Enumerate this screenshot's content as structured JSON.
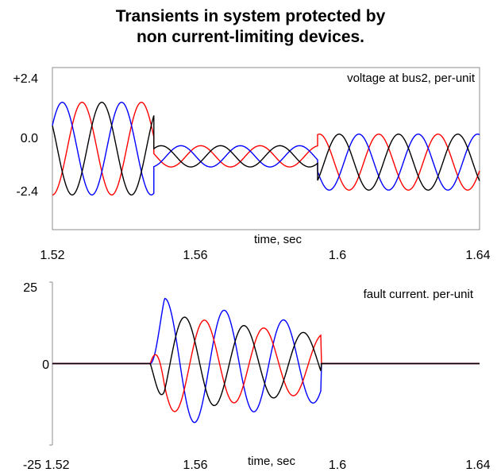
{
  "title": {
    "line1": "Transients in system protected by",
    "line2": "non current-limiting devices."
  },
  "colors": {
    "phase_a": "#ff0000",
    "phase_b": "#0000ff",
    "phase_c": "#000000"
  },
  "chart_data": [
    {
      "type": "line",
      "annotation": "voltage at bus2, per-unit",
      "xlabel": "time, sec",
      "ylabel": "",
      "xlim": [
        1.52,
        1.64
      ],
      "ylim": [
        -4.2,
        4.2
      ],
      "x_ticks": [
        "1.52",
        "1.56",
        "1.6",
        "1.64"
      ],
      "y_ticks": [
        "+2.4",
        "0.0",
        "-2.4"
      ],
      "grid": false,
      "series": [
        {
          "color": "#ff0000",
          "segments": [
            {
              "x_start": 1.52,
              "x_end": 1.5485,
              "amplitude": 2.4,
              "frequency_hz": 60,
              "phase_deg": -90
            },
            {
              "x_start": 1.5485,
              "x_end": 1.5945,
              "amplitude": 0.55,
              "frequency_hz": 60,
              "phase_deg": -90,
              "offset": -0.4
            },
            {
              "x_start": 1.5945,
              "x_end": 1.64,
              "amplitude": 1.45,
              "frequency_hz": 60,
              "phase_deg": -90,
              "offset": -0.7
            }
          ]
        },
        {
          "color": "#0000ff",
          "segments": [
            {
              "x_start": 1.52,
              "x_end": 1.5485,
              "amplitude": 2.4,
              "frequency_hz": 60,
              "phase_deg": 30
            },
            {
              "x_start": 1.5485,
              "x_end": 1.5945,
              "amplitude": 0.55,
              "frequency_hz": 60,
              "phase_deg": 30,
              "offset": -0.4
            },
            {
              "x_start": 1.5945,
              "x_end": 1.64,
              "amplitude": 1.45,
              "frequency_hz": 60,
              "phase_deg": 30,
              "offset": -0.7
            }
          ]
        },
        {
          "color": "#000000",
          "segments": [
            {
              "x_start": 1.52,
              "x_end": 1.5485,
              "amplitude": 2.4,
              "frequency_hz": 60,
              "phase_deg": 150
            },
            {
              "x_start": 1.5485,
              "x_end": 1.5945,
              "amplitude": 0.55,
              "frequency_hz": 60,
              "phase_deg": 150,
              "offset": -0.4
            },
            {
              "x_start": 1.5945,
              "x_end": 1.64,
              "amplitude": 1.45,
              "frequency_hz": 60,
              "phase_deg": 150,
              "offset": -0.7
            }
          ]
        }
      ]
    },
    {
      "type": "line",
      "annotation": "fault current. per-unit",
      "xlabel": "time, sec",
      "ylabel": "",
      "xlim": [
        1.52,
        1.64
      ],
      "ylim": [
        -25,
        25
      ],
      "x_ticks": [
        "1.52",
        "1.56",
        "1.6",
        "1.64"
      ],
      "y_ticks": [
        "25",
        "0",
        "-25"
      ],
      "grid": false,
      "fault_start": 1.5475,
      "fault_end": 1.5955,
      "series": [
        {
          "color": "#0000ff",
          "peak": 21,
          "decay_per_sec": 12,
          "frequency_hz": 60,
          "phase_deg": 0
        },
        {
          "color": "#ff0000",
          "peak": 16,
          "decay_per_sec": 12,
          "frequency_hz": 60,
          "phase_deg": 120
        },
        {
          "color": "#000000",
          "peak": 16,
          "decay_per_sec": 12,
          "frequency_hz": 60,
          "phase_deg": 240
        }
      ]
    }
  ]
}
